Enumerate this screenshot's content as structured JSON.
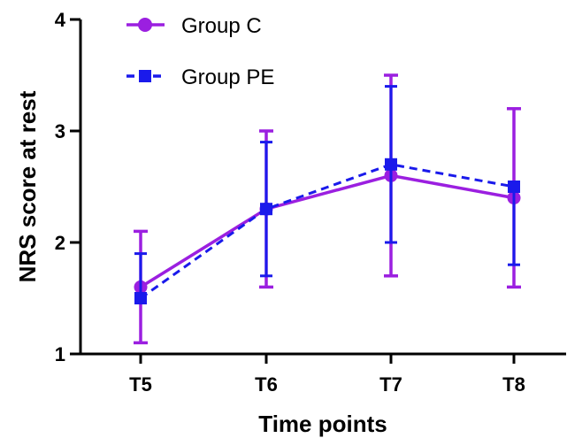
{
  "chart_data": {
    "type": "line",
    "categories": [
      "T5",
      "T6",
      "T7",
      "T8"
    ],
    "xlabel": "Time points",
    "ylabel": "NRS score at rest",
    "ylim": [
      1,
      4
    ],
    "yticks": [
      1,
      2,
      3,
      4
    ],
    "grid": false,
    "legend_position": "top-left",
    "error_bars": true,
    "series": [
      {
        "name": "Group C",
        "color": "#9b1fe0",
        "line_style": "solid",
        "marker": "circle",
        "values": [
          1.6,
          2.3,
          2.6,
          2.4
        ],
        "upper": [
          2.1,
          3.0,
          3.5,
          3.2
        ],
        "lower": [
          1.1,
          1.6,
          1.7,
          1.6
        ]
      },
      {
        "name": "Group PE",
        "color": "#1a1aeb",
        "line_style": "dashed",
        "marker": "square",
        "values": [
          1.5,
          2.3,
          2.7,
          2.5
        ],
        "upper": [
          1.9,
          2.9,
          3.4,
          2.5
        ],
        "lower": [
          1.5,
          1.7,
          2.0,
          1.8
        ]
      }
    ]
  }
}
